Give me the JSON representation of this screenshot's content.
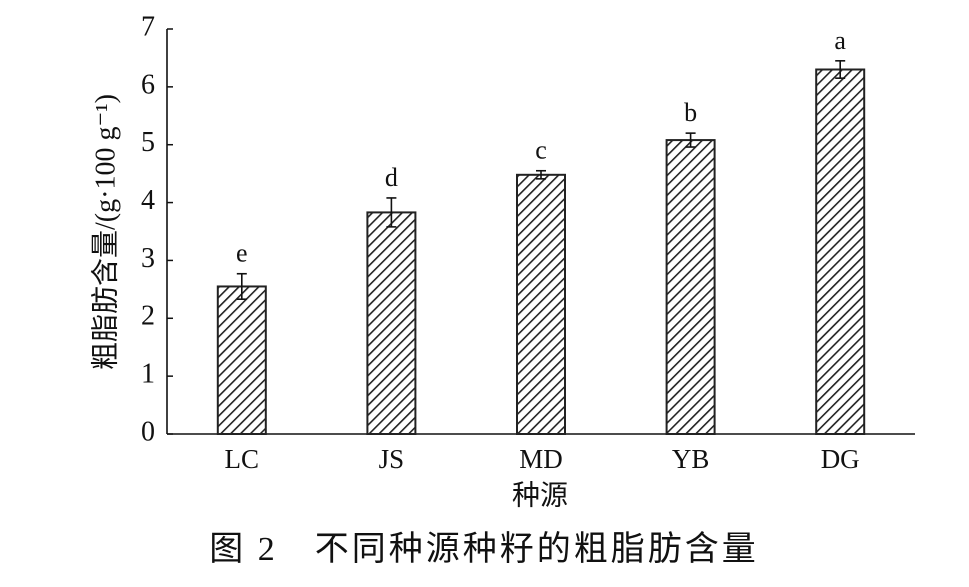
{
  "chart_data": {
    "type": "bar",
    "caption": "图 2　不同种源种籽的粗脂肪含量",
    "x_label": "种源",
    "y_label": "粗脂肪含量/(g·100 g⁻¹)",
    "categories": [
      "LC",
      "JS",
      "MD",
      "YB",
      "DG"
    ],
    "values": [
      2.55,
      3.83,
      4.48,
      5.08,
      6.3
    ],
    "errors": [
      0.22,
      0.25,
      0.07,
      0.12,
      0.15
    ],
    "significance": [
      "e",
      "d",
      "c",
      "b",
      "a"
    ],
    "color": "#222222",
    "ylim": [
      0,
      7
    ],
    "yticks": [
      0,
      1,
      2,
      3,
      4,
      5,
      6,
      7
    ],
    "grid": false
  }
}
